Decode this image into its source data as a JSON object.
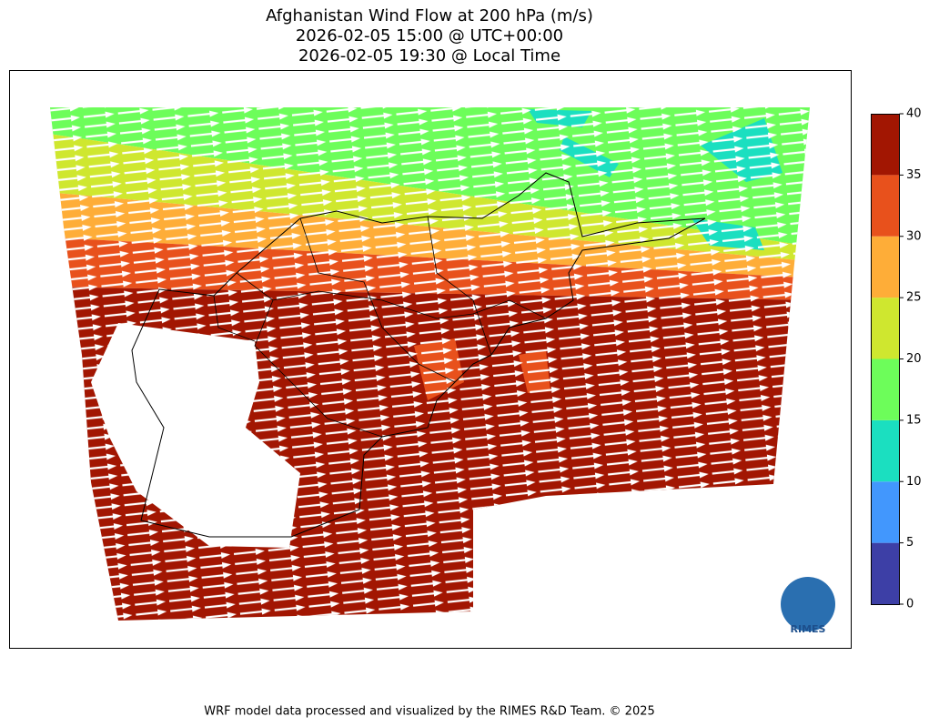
{
  "title": [
    "Afghanistan Wind Flow at 200 hPa (m/s)",
    "2026-02-05 15:00 @ UTC+00:00",
    "2026-02-05 19:30 @ Local Time"
  ],
  "colorbar": {
    "ticks": [
      0,
      5,
      10,
      15,
      20,
      25,
      30,
      35,
      40
    ],
    "colors": [
      "#3d3fa6",
      "#4297fd",
      "#1bdfc0",
      "#6dfd5a",
      "#cfe72f",
      "#fead38",
      "#e8511c",
      "#a21602"
    ]
  },
  "logo": "RIMES",
  "footer": "WRF model data processed and visualized by the RIMES R&D Team. © 2025"
}
